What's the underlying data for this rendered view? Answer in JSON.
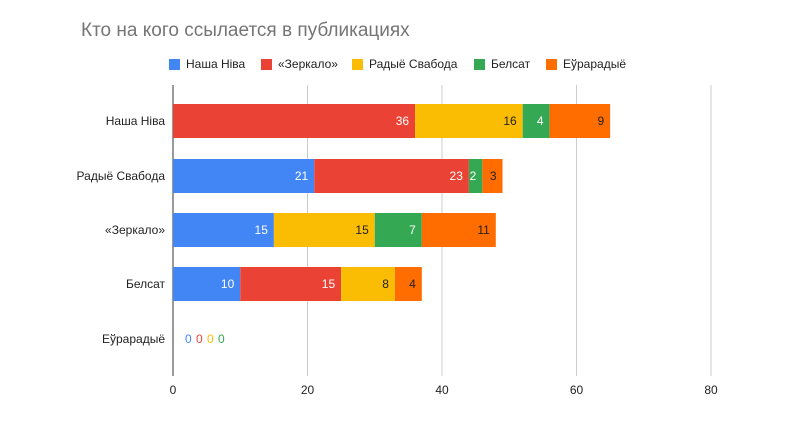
{
  "chart_data": {
    "type": "bar",
    "orientation": "horizontal",
    "stacked": true,
    "title": "Кто на кого ссылается в публикациях",
    "categories": [
      "Наша Ніва",
      "Радыё Свабода",
      "«Зеркало»",
      "Белсат",
      "Еўрарадыё"
    ],
    "series": [
      {
        "name": "Наша Ніва",
        "color": "#4285f4",
        "values": [
          0,
          21,
          15,
          10,
          0
        ]
      },
      {
        "name": "«Зеркало»",
        "color": "#ea4335",
        "values": [
          36,
          23,
          0,
          15,
          0
        ]
      },
      {
        "name": "Радыё Свабода",
        "color": "#fbbc04",
        "values": [
          16,
          0,
          15,
          8,
          0
        ]
      },
      {
        "name": "Белсат",
        "color": "#34a853",
        "values": [
          4,
          2,
          7,
          0,
          0
        ]
      },
      {
        "name": "Еўрарадыё",
        "color": "#ff6d01",
        "values": [
          9,
          3,
          11,
          4,
          0
        ]
      }
    ],
    "data_labels": [
      [
        "",
        "36",
        "16",
        "4",
        "9"
      ],
      [
        "21",
        "23",
        "",
        "2",
        "3"
      ],
      [
        "15",
        "",
        "15",
        "7",
        "11"
      ],
      [
        "10",
        "15",
        "8",
        "",
        "4"
      ],
      [
        "0",
        "0",
        "0",
        "0",
        ""
      ]
    ],
    "xlim": [
      0,
      80
    ],
    "xticks": [
      "0",
      "20",
      "40",
      "60",
      "80"
    ],
    "grid": true,
    "legend_position": "top"
  }
}
